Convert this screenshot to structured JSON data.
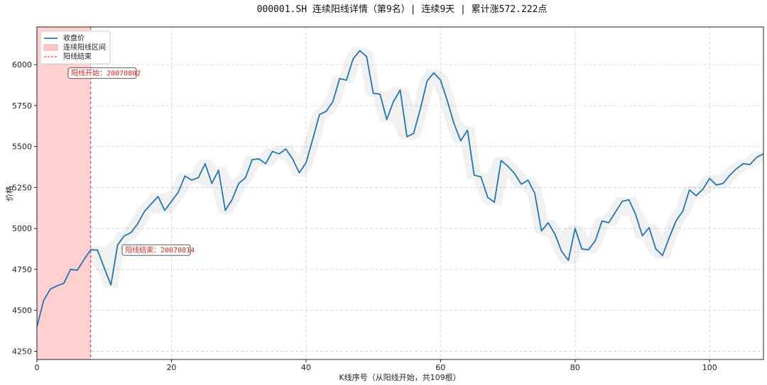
{
  "chart_data": {
    "type": "line",
    "title": "000001.SH 连续阳线详情（第9名）| 连续9天 | 累计涨572.222点",
    "xlabel": "K线序号（从阳线开始，共109根）",
    "ylabel": "价格",
    "xlim": [
      0,
      108
    ],
    "ylim": [
      4200,
      6230
    ],
    "x_ticks": [
      0,
      20,
      40,
      60,
      80,
      100
    ],
    "y_ticks": [
      4250,
      4500,
      4750,
      5000,
      5250,
      5500,
      5750,
      6000
    ],
    "grid": true,
    "legend_position": "top-left",
    "legend": {
      "close": "收盘价",
      "span": "连续阳线区间",
      "end": "阳线结束"
    },
    "series": [
      {
        "name": "收盘价",
        "color": "#1f77b4",
        "values": [
          4400,
          4560,
          4630,
          4650,
          4665,
          4750,
          4745,
          4810,
          4870,
          4868,
          4760,
          4655,
          4900,
          4955,
          4975,
          5030,
          5105,
          5150,
          5195,
          5110,
          5165,
          5220,
          5320,
          5295,
          5310,
          5395,
          5275,
          5355,
          5110,
          5175,
          5275,
          5310,
          5420,
          5425,
          5395,
          5470,
          5455,
          5485,
          5425,
          5340,
          5400,
          5545,
          5695,
          5715,
          5775,
          5915,
          5905,
          6035,
          6085,
          6050,
          5825,
          5820,
          5665,
          5775,
          5845,
          5560,
          5580,
          5730,
          5900,
          5950,
          5905,
          5780,
          5640,
          5535,
          5600,
          5325,
          5315,
          5190,
          5160,
          5415,
          5380,
          5335,
          5270,
          5295,
          5215,
          4985,
          5035,
          4965,
          4860,
          4805,
          5000,
          4875,
          4870,
          4925,
          5045,
          5035,
          5100,
          5165,
          5175,
          5085,
          4955,
          5005,
          4875,
          4835,
          4945,
          5045,
          5105,
          5235,
          5200,
          5240,
          5305,
          5265,
          5275,
          5325,
          5365,
          5395,
          5390,
          5435,
          5455
        ]
      }
    ],
    "streak": {
      "start_index": 0,
      "end_index": 8,
      "start_label": "阳线开始：20070802",
      "end_label": "阳线结束：20070814",
      "fill_color": "#ffc9c9",
      "line_color": "#d62728"
    }
  }
}
